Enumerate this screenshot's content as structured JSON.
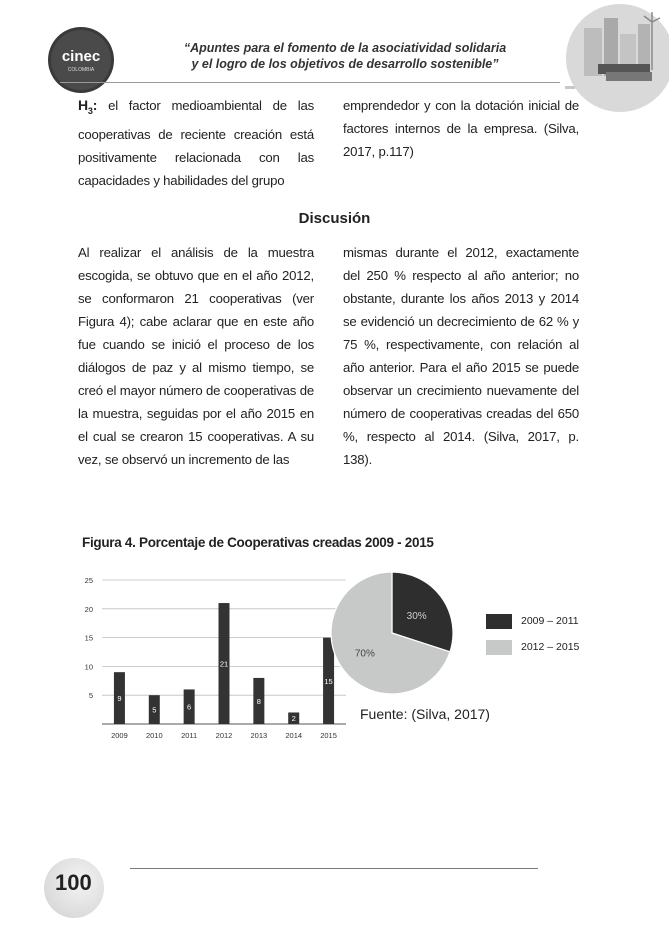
{
  "header": {
    "logo_text": "cinec",
    "logo_subtext": "COLOMBIA",
    "title_line1": "“Apuntes para el fomento de la asociatividad solidaria",
    "title_line2": "y el logro de los objetivos de desarrollo sostenible”"
  },
  "hypothesis": {
    "label_main": "H",
    "label_sub": "3",
    "label_colon": ":",
    "left_text": "el factor medioambiental de las cooperativas de reciente creación está positivamente relacionada con las capacidades y habilidades del grupo",
    "right_text": "emprendedor y con la dotación inicial de factores internos de la empresa. (Silva, 2017, p.117)"
  },
  "section": {
    "title": "Discusión",
    "left_text": "Al realizar el análisis de la muestra escogida, se obtuvo que en el año 2012, se conformaron 21 cooperativas (ver Figura 4); cabe aclarar que en este año fue cuando se inició el proceso de los diálogos de paz y al mismo tiempo, se creó el mayor número de cooperativas de la muestra, seguidas por el año 2015 en el cual se crearon 15 cooperativas. A su vez, se observó un incremento de las",
    "right_text": "mismas durante el 2012, exactamente del 250 % respecto al año anterior; no obstante, durante los años 2013 y 2014 se evidenció un decrecimiento de 62 % y 75 %, respectivamente, con relación al año anterior. Para el año 2015 se puede observar un crecimiento nuevamente del número de cooperativas creadas del 650 %, respecto al 2014. (Silva, 2017, p. 138)."
  },
  "figure": {
    "title": "Figura 4. Porcentaje de Cooperativas creadas 2009 - 2015",
    "source": "Fuente: (Silva, 2017)"
  },
  "chart_data": [
    {
      "type": "bar",
      "categories": [
        "2009",
        "2010",
        "2011",
        "2012",
        "2013",
        "2014",
        "2015"
      ],
      "values": [
        9,
        5,
        6,
        21,
        8,
        2,
        15
      ],
      "value_labels": [
        "9",
        "5",
        "6",
        "21",
        "8",
        "2",
        "15"
      ],
      "yticks": [
        "5",
        "10",
        "15",
        "20",
        "25"
      ],
      "ylim": [
        0,
        25
      ],
      "grid": true,
      "bar_color": "#333333"
    },
    {
      "type": "pie",
      "slices": [
        {
          "label": "2009 – 2011",
          "value": 30,
          "value_label": "30%",
          "color": "#2e2e2e"
        },
        {
          "label": "2012 – 2015",
          "value": 70,
          "value_label": "70%",
          "color": "#c7c9c8"
        }
      ],
      "legend_position": "right"
    }
  ],
  "footer": {
    "page_number": "100"
  }
}
